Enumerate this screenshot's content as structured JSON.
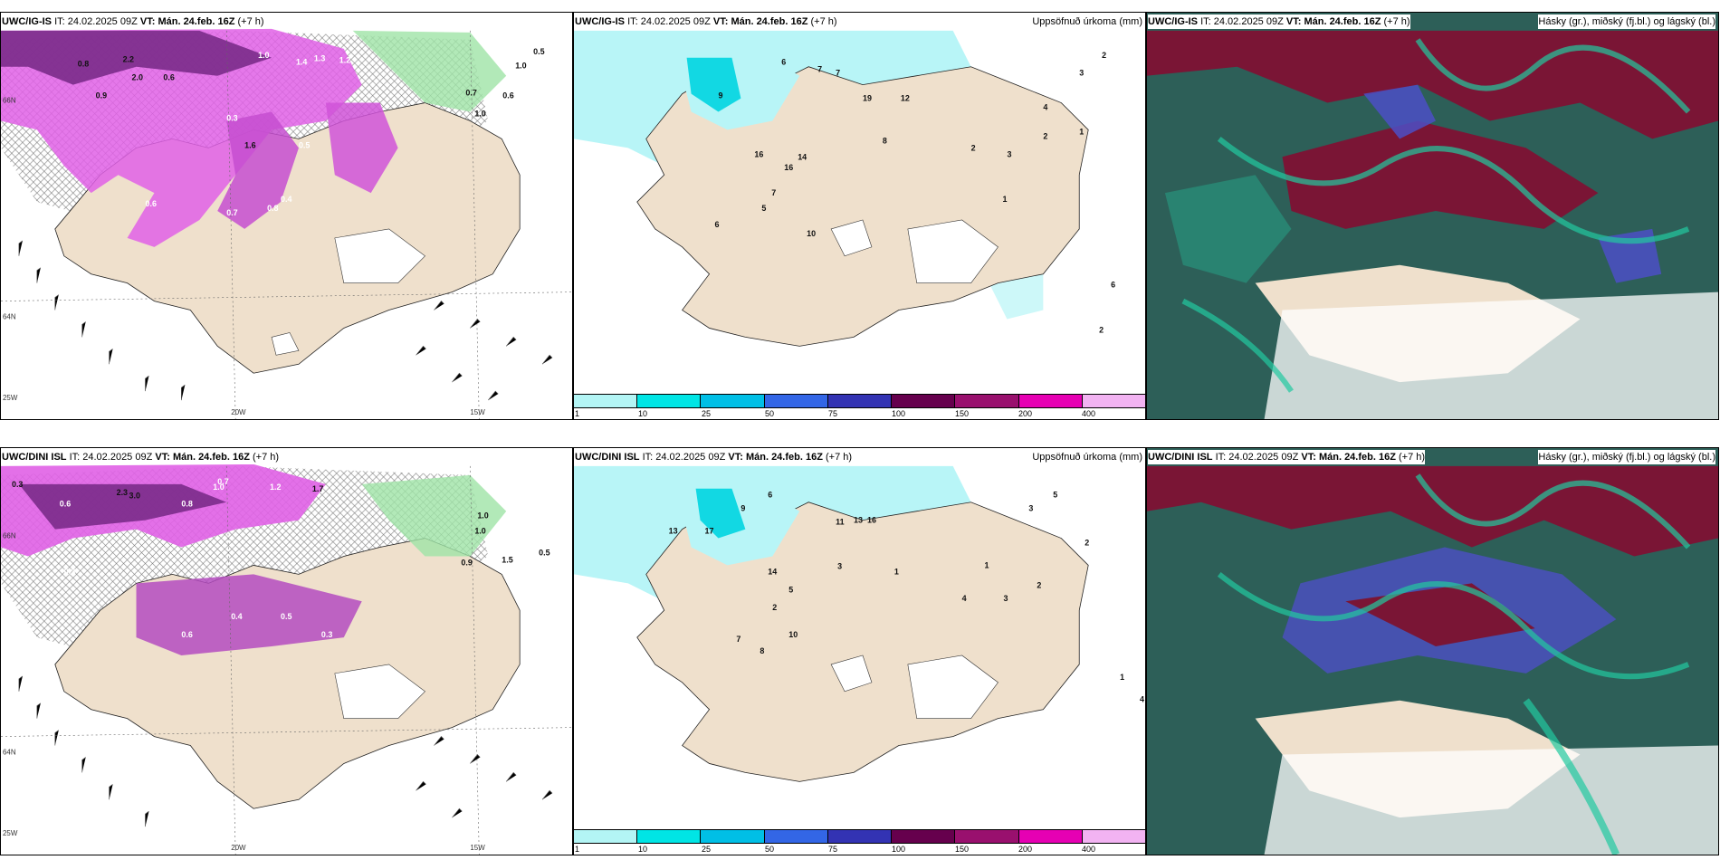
{
  "rows": [
    {
      "model": "UWC/IG-IS",
      "it_label": "IT:",
      "it_value": "24.02.2025 09Z",
      "vt_label": "VT:",
      "vt_value": "Mán. 24.feb. 16Z",
      "lead": "(+7 h)",
      "precip_title": "Uppsöfnuð úrkoma (mm)",
      "cloud_title": "Hásky (gr.), miðský (fj.bl.) og lágský (bl.)",
      "snow_values": [
        "0.8",
        "2.2",
        "1.0",
        "1.4",
        "1.3",
        "1.2",
        "2.0",
        "0.6",
        "0.9",
        "1.6",
        "0.5",
        "0.3",
        "0.4",
        "0.7",
        "0.6",
        "0.8",
        "1.0",
        "0.7",
        "0.6",
        "0.5",
        "1.0"
      ],
      "precip_values": [
        "6",
        "7",
        "7",
        "19",
        "9",
        "16",
        "16",
        "8",
        "12",
        "14",
        "10",
        "6",
        "7",
        "5",
        "2",
        "3",
        "1",
        "2",
        "1",
        "4",
        "3",
        "2",
        "2",
        "6"
      ],
      "axis": {
        "lon1": "20W",
        "lon2": "15W",
        "lat1": "66N",
        "lat2": "64N",
        "lat3": "25W"
      }
    },
    {
      "model": "UWC/DINI ISL",
      "it_label": "IT:",
      "it_value": "24.02.2025 09Z",
      "vt_label": "VT:",
      "vt_value": "Mán. 24.feb. 16Z",
      "lead": "(+7 h)",
      "precip_title": "Uppsöfnuð úrkoma (mm)",
      "cloud_title": "Hásky (gr.), miðský (fj.bl.) og lágský (bl.)",
      "snow_values": [
        "0.3",
        "2.3",
        "3.0",
        "1.2",
        "1.0",
        "0.7",
        "0.8",
        "1.7",
        "0.6",
        "1.0",
        "0.8",
        "0.5",
        "0.4",
        "0.3",
        "0.6",
        "0.9",
        "1.5",
        "0.5",
        "0.3",
        "1.0"
      ],
      "precip_values": [
        "6",
        "9",
        "13",
        "17",
        "13",
        "14",
        "16",
        "11",
        "8",
        "7",
        "10",
        "5",
        "3",
        "2",
        "1",
        "4",
        "1",
        "3",
        "2",
        "2",
        "4",
        "5",
        "3",
        "1"
      ],
      "axis": {
        "lon1": "20W",
        "lon2": "15W",
        "lat1": "66N",
        "lat2": "64N",
        "lat3": "25W"
      }
    }
  ],
  "colorbar": {
    "labels": [
      "1",
      "10",
      "25",
      "50",
      "75",
      "100",
      "150",
      "200",
      "400"
    ],
    "colors": [
      "#b3f5f5",
      "#00e5e5",
      "#00bfe6",
      "#3366e6",
      "#3333b3",
      "#66004d",
      "#99106e",
      "#e600b3",
      "#f2b3f2"
    ]
  },
  "colors": {
    "land": "#efe0cc",
    "sea": "#ffffff",
    "snow_magenta": "#e060e6",
    "snow_dark": "#7a2b8a",
    "precip_cyan": "#b8f5f7",
    "cloud_dark": "#2d5f58",
    "cloud_red": "#7a1535",
    "cloud_blue": "#4c4fc6",
    "cloud_green": "#22c9a0"
  }
}
